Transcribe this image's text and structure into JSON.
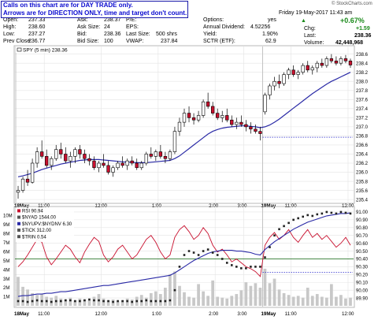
{
  "note": {
    "line1": "Calls on this chart are for DAY TRADE only.",
    "line2": "Arrows are for DIRECTION ONLY, time and target don't count."
  },
  "header": {
    "col1": [
      {
        "label": "Open:",
        "value": "237.33"
      },
      {
        "label": "High:",
        "value": "238.60"
      },
      {
        "label": "Low:",
        "value": "237.27"
      },
      {
        "label": "Prev Close:",
        "value": "236.77"
      }
    ],
    "col2": [
      {
        "label": "Ask:",
        "value": "238.37"
      },
      {
        "label": "Ask Size:",
        "value": "24"
      },
      {
        "label": "Bid:",
        "value": "238.36"
      },
      {
        "label": "Bid Size:",
        "value": "100"
      }
    ],
    "col3": [
      {
        "label": "P/E:",
        "value": ""
      },
      {
        "label": "EPS:",
        "value": ""
      },
      {
        "label": "Last Size:",
        "value": "500 shrs"
      },
      {
        "label": "VWAP:",
        "value": "237.84"
      }
    ],
    "col4": [
      {
        "label": "Options:",
        "value": "yes"
      },
      {
        "label": "Annual Dividend:",
        "value": "4.52256"
      },
      {
        "label": "Yield:",
        "value": "1.90%"
      },
      {
        "label": "SCTR (ETF):",
        "value": "62.9"
      }
    ],
    "date": "Friday 19-May-2017  11:43 am",
    "watermark": "© StockCharts.com",
    "change_pct": "+0.67%",
    "chg_label": "Chg:",
    "chg_value": "+1.59",
    "last_label": "Last:",
    "last_value": "238.36",
    "volume_label": "Volume:",
    "volume_value": "42,448,968"
  },
  "colors": {
    "up_body": "#ffffff",
    "down_body": "#c8102e",
    "candle_outline": "#000000",
    "ma_line": "#2a2aa6",
    "prev_close_line": "#2a2acc",
    "rsi_line": "#c8102e",
    "ratio_line": "#2a2aa6",
    "tick_bar": "#c8c8c8",
    "grid": "#e4e4e4",
    "green": "#1a8a1a"
  },
  "chart_data": [
    {
      "type": "candlestick",
      "legend": "SPY (5 min) 238.36",
      "ylim": [
        235.35,
        238.75
      ],
      "yticks": [
        "238.6",
        "238.4",
        "238.2",
        "238.0",
        "237.8",
        "237.6",
        "237.4",
        "237.2",
        "237.0",
        "236.8",
        "236.6",
        "236.4",
        "236.2",
        "236.0",
        "235.8",
        "235.6",
        "235.4"
      ],
      "xticks": [
        {
          "label": "18May",
          "bold": true
        },
        {
          "label": "11:00",
          "bold": false
        },
        {
          "label": "12:00",
          "bold": false
        },
        {
          "label": "1:00",
          "bold": false
        },
        {
          "label": "2:00",
          "bold": false
        },
        {
          "label": "3:00",
          "bold": false
        },
        {
          "label": "19May",
          "bold": true
        },
        {
          "label": "11:00",
          "bold": false
        },
        {
          "label": "12:00",
          "bold": false
        }
      ],
      "prev_close": 236.77,
      "candles": [
        [
          235.56,
          235.7,
          235.42,
          235.6
        ],
        [
          235.6,
          235.9,
          235.55,
          235.85
        ],
        [
          235.85,
          236.05,
          235.7,
          235.78
        ],
        [
          235.78,
          236.3,
          235.75,
          236.2
        ],
        [
          236.2,
          236.55,
          236.1,
          236.45
        ],
        [
          236.45,
          236.7,
          236.3,
          236.35
        ],
        [
          236.35,
          236.5,
          236.1,
          236.15
        ],
        [
          236.15,
          236.35,
          236.05,
          236.3
        ],
        [
          236.3,
          236.6,
          236.25,
          236.5
        ],
        [
          236.5,
          236.65,
          236.3,
          236.4
        ],
        [
          236.4,
          236.55,
          236.2,
          236.25
        ],
        [
          236.25,
          236.45,
          236.1,
          236.35
        ],
        [
          236.35,
          236.55,
          236.2,
          236.5
        ],
        [
          236.5,
          236.6,
          236.3,
          236.4
        ],
        [
          236.4,
          236.5,
          236.2,
          236.3
        ],
        [
          236.3,
          236.4,
          236.15,
          236.25
        ],
        [
          236.25,
          236.35,
          236.05,
          236.1
        ],
        [
          236.1,
          236.25,
          236.0,
          236.2
        ],
        [
          236.2,
          236.4,
          236.1,
          236.15
        ],
        [
          236.15,
          236.25,
          235.95,
          236.0
        ],
        [
          236.0,
          236.15,
          235.9,
          236.1
        ],
        [
          236.1,
          236.25,
          236.05,
          236.2
        ],
        [
          236.2,
          236.35,
          236.1,
          236.15
        ],
        [
          236.15,
          236.3,
          236.05,
          236.25
        ],
        [
          236.25,
          236.35,
          236.15,
          236.2
        ],
        [
          236.2,
          236.3,
          236.05,
          236.1
        ],
        [
          236.1,
          236.25,
          236.05,
          236.2
        ],
        [
          236.2,
          236.45,
          236.15,
          236.4
        ],
        [
          236.4,
          236.55,
          236.3,
          236.35
        ],
        [
          236.35,
          236.5,
          236.25,
          236.45
        ],
        [
          236.45,
          236.6,
          236.3,
          236.35
        ],
        [
          236.35,
          236.45,
          236.2,
          236.3
        ],
        [
          236.3,
          236.5,
          236.25,
          236.45
        ],
        [
          236.45,
          237.0,
          236.4,
          236.9
        ],
        [
          236.9,
          237.2,
          236.8,
          237.1
        ],
        [
          237.1,
          237.4,
          237.0,
          237.3
        ],
        [
          237.3,
          237.45,
          237.1,
          237.2
        ],
        [
          237.2,
          237.3,
          237.05,
          237.15
        ],
        [
          237.15,
          237.35,
          237.1,
          237.25
        ],
        [
          237.25,
          237.6,
          237.2,
          237.55
        ],
        [
          237.55,
          237.75,
          237.4,
          237.45
        ],
        [
          237.45,
          237.55,
          237.25,
          237.3
        ],
        [
          237.3,
          237.4,
          237.15,
          237.2
        ],
        [
          237.2,
          237.35,
          237.1,
          237.25
        ],
        [
          237.25,
          237.4,
          237.1,
          237.15
        ],
        [
          237.15,
          237.25,
          237.0,
          237.05
        ],
        [
          237.05,
          237.2,
          236.95,
          237.1
        ],
        [
          237.1,
          237.25,
          237.0,
          237.05
        ],
        [
          237.05,
          237.15,
          236.9,
          237.0
        ],
        [
          237.0,
          237.1,
          236.85,
          236.95
        ],
        [
          236.95,
          237.05,
          236.85,
          236.9
        ],
        [
          236.9,
          237.0,
          236.7,
          236.85
        ],
        [
          237.33,
          237.75,
          237.27,
          237.7
        ],
        [
          237.7,
          237.95,
          237.6,
          237.9
        ],
        [
          237.9,
          238.1,
          237.8,
          238.0
        ],
        [
          238.0,
          238.15,
          237.85,
          237.95
        ],
        [
          237.95,
          238.2,
          237.9,
          238.15
        ],
        [
          238.15,
          238.3,
          238.05,
          238.25
        ],
        [
          238.25,
          238.35,
          238.1,
          238.15
        ],
        [
          238.15,
          238.25,
          238.05,
          238.2
        ],
        [
          238.2,
          238.4,
          238.15,
          238.35
        ],
        [
          238.35,
          238.45,
          238.2,
          238.25
        ],
        [
          238.25,
          238.35,
          238.15,
          238.3
        ],
        [
          238.3,
          238.45,
          238.2,
          238.4
        ],
        [
          238.4,
          238.5,
          238.3,
          238.35
        ],
        [
          238.35,
          238.55,
          238.3,
          238.5
        ],
        [
          238.5,
          238.6,
          238.4,
          238.45
        ],
        [
          238.45,
          238.55,
          238.35,
          238.4
        ],
        [
          238.4,
          238.55,
          238.35,
          238.5
        ],
        [
          238.5,
          238.58,
          238.4,
          238.45
        ],
        [
          238.45,
          238.5,
          238.3,
          238.36
        ]
      ],
      "ma": [
        235.9,
        235.92,
        235.95,
        235.98,
        236.02,
        236.06,
        236.09,
        236.12,
        236.15,
        236.18,
        236.2,
        236.22,
        236.24,
        236.26,
        236.27,
        236.28,
        236.28,
        236.28,
        236.27,
        236.26,
        236.25,
        236.24,
        236.23,
        236.22,
        236.22,
        236.21,
        236.21,
        236.21,
        236.22,
        236.23,
        236.24,
        236.25,
        236.26,
        236.3,
        236.36,
        236.44,
        236.52,
        236.6,
        236.68,
        236.76,
        236.84,
        236.9,
        236.94,
        236.97,
        236.99,
        237.0,
        237.01,
        237.02,
        237.02,
        237.01,
        237.0,
        236.98,
        237.0,
        237.04,
        237.1,
        237.17,
        237.25,
        237.33,
        237.41,
        237.49,
        237.57,
        237.65,
        237.73,
        237.8,
        237.87,
        237.94,
        238.0,
        238.05,
        238.1,
        238.15,
        238.2
      ]
    },
    {
      "type": "line",
      "legends": [
        "RSI 90.94",
        "$NYAD 1544.00",
        "$NYUPV:$NYDNV 6.30",
        "$TICK 312.00",
        "$TRIN 0.54"
      ],
      "ylim_right": [
        89.8,
        91.05
      ],
      "yticks_right": [
        "91.00",
        "90.90",
        "90.80",
        "90.70",
        "90.60",
        "90.50",
        "90.40",
        "90.30",
        "90.20",
        "90.10",
        "90.00",
        "89.90"
      ],
      "yticks_left": [
        "10M",
        "9M",
        "8M",
        "7M",
        "6M",
        "5M",
        "4M",
        "3M",
        "2M",
        "1M"
      ],
      "reference_lines": [
        90.4,
        90.23
      ],
      "rsi": [
        40,
        45,
        52,
        60,
        68,
        65,
        50,
        42,
        48,
        55,
        62,
        58,
        50,
        44,
        55,
        63,
        70,
        66,
        52,
        45,
        50,
        58,
        62,
        55,
        48,
        52,
        60,
        68,
        72,
        65,
        55,
        48,
        52,
        70,
        78,
        82,
        76,
        68,
        72,
        80,
        74,
        62,
        55,
        58,
        52,
        45,
        48,
        44,
        40,
        38,
        35,
        30,
        62,
        70,
        75,
        68,
        72,
        78,
        70,
        65,
        72,
        78,
        70,
        74,
        68,
        72,
        66,
        60,
        64,
        70,
        62
      ],
      "ratio": [
        89.92,
        89.93,
        89.93,
        89.94,
        89.95,
        89.95,
        89.96,
        89.96,
        89.97,
        89.98,
        89.98,
        89.99,
        90.0,
        90.01,
        90.02,
        90.03,
        90.04,
        90.05,
        90.06,
        90.06,
        90.07,
        90.08,
        90.09,
        90.1,
        90.11,
        90.12,
        90.13,
        90.14,
        90.15,
        90.16,
        90.17,
        90.18,
        90.19,
        90.22,
        90.26,
        90.3,
        90.34,
        90.38,
        90.41,
        90.44,
        90.47,
        90.49,
        90.5,
        90.51,
        90.51,
        90.51,
        90.5,
        90.5,
        90.49,
        90.48,
        90.46,
        90.45,
        90.52,
        90.57,
        90.62,
        90.66,
        90.7,
        90.74,
        90.78,
        90.81,
        90.84,
        90.87,
        90.89,
        90.91,
        90.93,
        90.95,
        90.96,
        90.97,
        90.98,
        90.98,
        90.99
      ],
      "rsi_dots": [
        89.86,
        89.86,
        89.85,
        89.86,
        89.87,
        89.86,
        89.86,
        89.85,
        89.86,
        89.86,
        89.87,
        89.87,
        89.86,
        89.86,
        89.87,
        89.88,
        89.87,
        89.87,
        89.86,
        89.86,
        89.85,
        89.86,
        89.86,
        89.86,
        89.85,
        89.86,
        89.86,
        89.87,
        89.86,
        89.86,
        89.86,
        89.86,
        89.87,
        90.0,
        90.3,
        90.45,
        90.5,
        90.48,
        90.45,
        90.5,
        90.52,
        90.48,
        90.45,
        90.4,
        90.35,
        90.32,
        90.3,
        90.28,
        90.28,
        90.3,
        90.3,
        90.3,
        90.42,
        90.55,
        90.7,
        90.78,
        90.82,
        90.86,
        90.9,
        90.92,
        90.94,
        90.96,
        90.95,
        90.97,
        90.98,
        91.0,
        90.99,
        90.98,
        91.0,
        90.99,
        90.98
      ],
      "volume_m": [
        3.2,
        2.1,
        1.8,
        1.4,
        1.2,
        1.3,
        1.0,
        0.9,
        1.1,
        0.8,
        0.7,
        0.9,
        0.6,
        0.8,
        0.7,
        0.6,
        1.0,
        1.3,
        0.8,
        0.6,
        0.7,
        0.5,
        0.6,
        0.8,
        0.7,
        1.0,
        1.2,
        0.9,
        1.4,
        1.6,
        1.3,
        2.0,
        3.5,
        3.8,
        2.2,
        1.5,
        1.0,
        0.9,
        2.4,
        1.6,
        1.1,
        2.8,
        1.0,
        0.9,
        0.8,
        1.1,
        1.3,
        1.7,
        2.6,
        2.2,
        2.5,
        2.0,
        4.1,
        2.5,
        3.0,
        1.8,
        1.4,
        1.2,
        1.0,
        1.1,
        0.9,
        2.0,
        1.1,
        1.3,
        1.0,
        0.9,
        2.4,
        1.0,
        1.2,
        0.8,
        0.9
      ]
    }
  ]
}
